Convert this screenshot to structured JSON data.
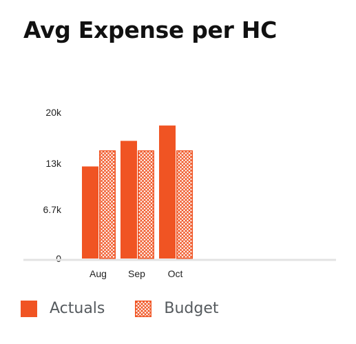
{
  "title": "Avg Expense per HC",
  "colors": {
    "actuals": "#f05423",
    "budget_pattern": "#f05423",
    "axis": "#e3e3e3",
    "text": "#222222",
    "legend_text": "#555a5e"
  },
  "chart_data": {
    "type": "bar",
    "title": "Avg Expense per HC",
    "categories": [
      "Aug",
      "Sep",
      "Oct"
    ],
    "series": [
      {
        "name": "Actuals",
        "style": "solid",
        "values": [
          12600,
          16100,
          18200
        ]
      },
      {
        "name": "Budget",
        "style": "crosshatch",
        "values": [
          14800,
          14800,
          14800
        ]
      }
    ],
    "y_ticks": [
      {
        "value": 0,
        "label": "0"
      },
      {
        "value": 6700,
        "label": "6.7k"
      },
      {
        "value": 13000,
        "label": "13k"
      },
      {
        "value": 20000,
        "label": "20k"
      }
    ],
    "ylim": [
      0,
      20000
    ],
    "grid": false,
    "legend_position": "bottom-left"
  },
  "legend": {
    "items": [
      {
        "label": "Actuals",
        "style": "solid"
      },
      {
        "label": "Budget",
        "style": "crosshatch"
      }
    ]
  }
}
